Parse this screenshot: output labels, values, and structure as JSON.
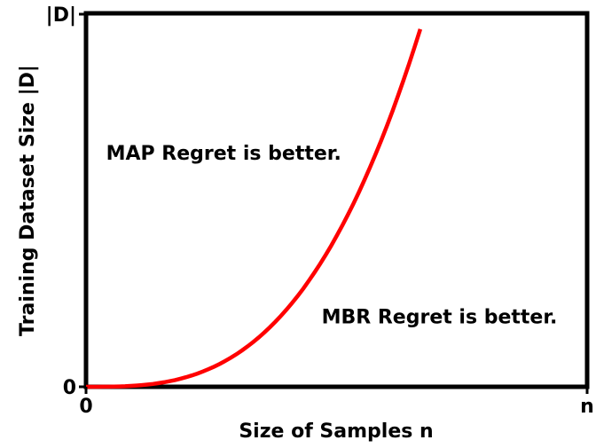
{
  "chart_data": {
    "type": "line",
    "xlabel": "Size of Samples n",
    "ylabel": "Training Dataset Size |D|",
    "x_ticks": [
      "0",
      "n"
    ],
    "y_ticks": [
      "0",
      "|D|"
    ],
    "xlim": [
      0,
      1
    ],
    "ylim": [
      0,
      1
    ],
    "grid": false,
    "legend": "none",
    "series": [
      {
        "color": "#ff0000",
        "x": [
          0.0,
          0.1,
          0.2,
          0.3,
          0.4,
          0.5,
          0.6,
          0.667
        ],
        "y": [
          0.0,
          0.003,
          0.027,
          0.091,
          0.216,
          0.422,
          0.729,
          0.96
        ]
      }
    ],
    "annotations": [
      {
        "text": "MAP Regret is better.",
        "x": 0.04,
        "y": 0.61
      },
      {
        "text": "MBR Regret is better.",
        "x": 0.47,
        "y": 0.17
      }
    ]
  }
}
